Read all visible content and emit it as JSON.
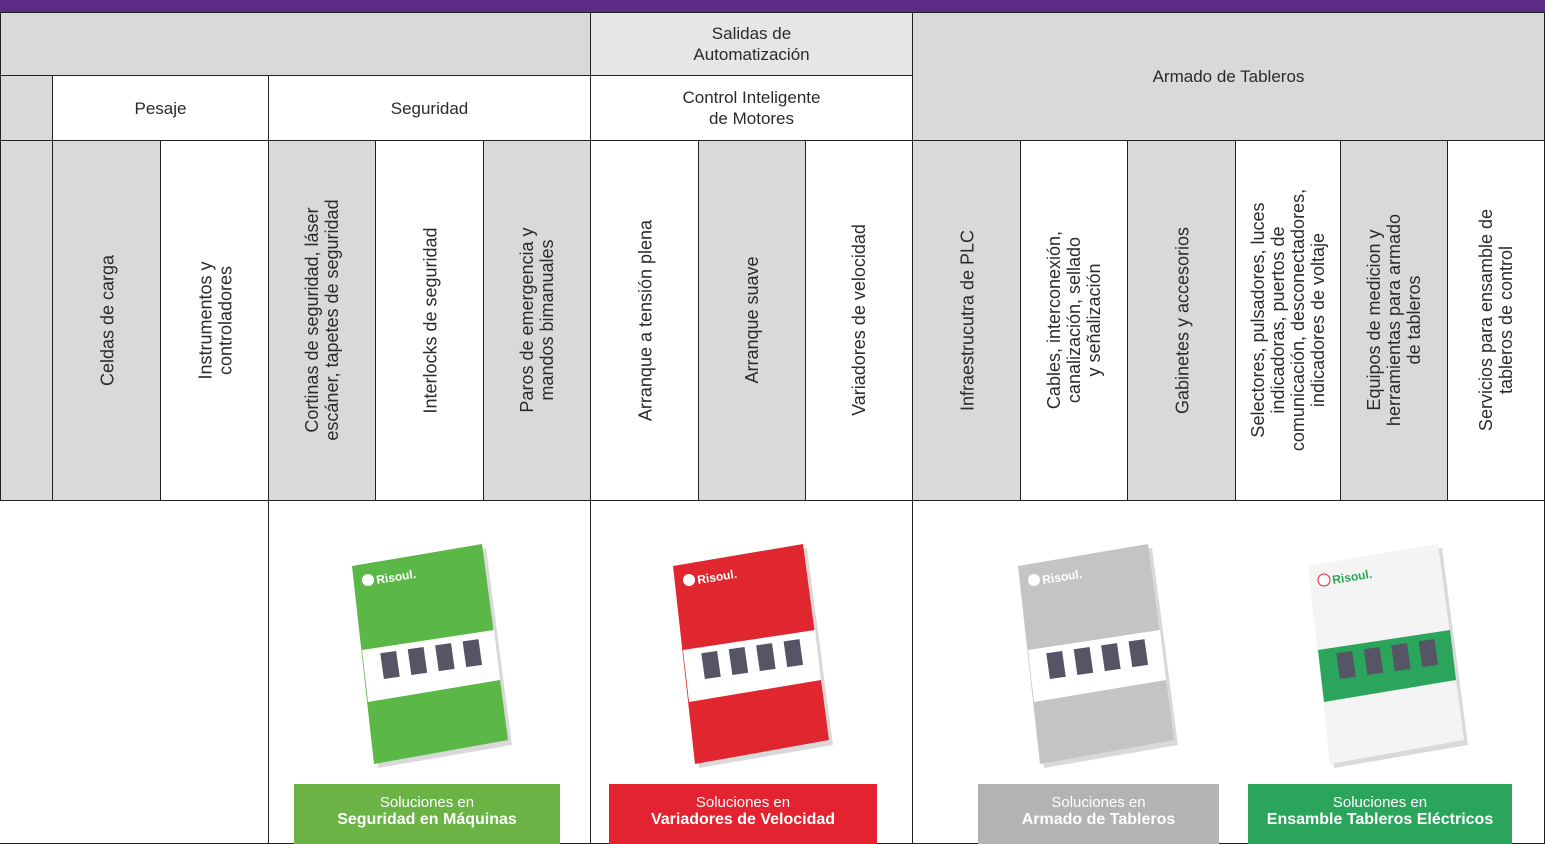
{
  "top_headers": {
    "salidas": [
      "Salidas de",
      "Automatización"
    ],
    "armado": [
      "Armado de Tableros"
    ]
  },
  "group_headers": {
    "pesaje": [
      "Pesaje"
    ],
    "seguridad": [
      "Seguridad"
    ],
    "control": [
      "Control Inteligente",
      "de Motores"
    ]
  },
  "columns": [
    [
      "Celdas de carga"
    ],
    [
      "Instrumentos y",
      "controladores"
    ],
    [
      "Cortinas de seguridad, láser",
      "escáner, tapetes de seguridad"
    ],
    [
      "Interlocks de seguridad"
    ],
    [
      "Paros de emergencia y",
      "mandos bimanuales"
    ],
    [
      "Arranque a tensión plena"
    ],
    [
      "Arranque suave"
    ],
    [
      "Variadores de velocidad"
    ],
    [
      "Infraestrucutra de PLC"
    ],
    [
      "Cables, interconexión,",
      "canalización, sellado",
      "y señalización"
    ],
    [
      "Gabinetes y accesorios"
    ],
    [
      "Selectores, pulsadores, luces",
      "indicadoras, puertos de",
      "comunicación, desconectadores,",
      "indicadores de voltaje"
    ],
    [
      "Equipos de medicion y",
      "herramientas para armado",
      "de tableros"
    ],
    [
      "Servicios para ensamble de",
      "tableros de control"
    ]
  ],
  "brochures": [
    {
      "brand": "Risoul.",
      "caption": "Soluciones en",
      "title": "Seguridad en Máquinas"
    },
    {
      "brand": "Risoul.",
      "caption": "Soluciones en",
      "title": "Variadores de Velocidad"
    },
    {
      "brand": "Risoul.",
      "caption": "Soluciones en",
      "title": "Armado de Tableros"
    },
    {
      "brand": "Risoul.",
      "caption": "Soluciones en",
      "title": "Ensamble Tableros Eléctricos"
    }
  ]
}
